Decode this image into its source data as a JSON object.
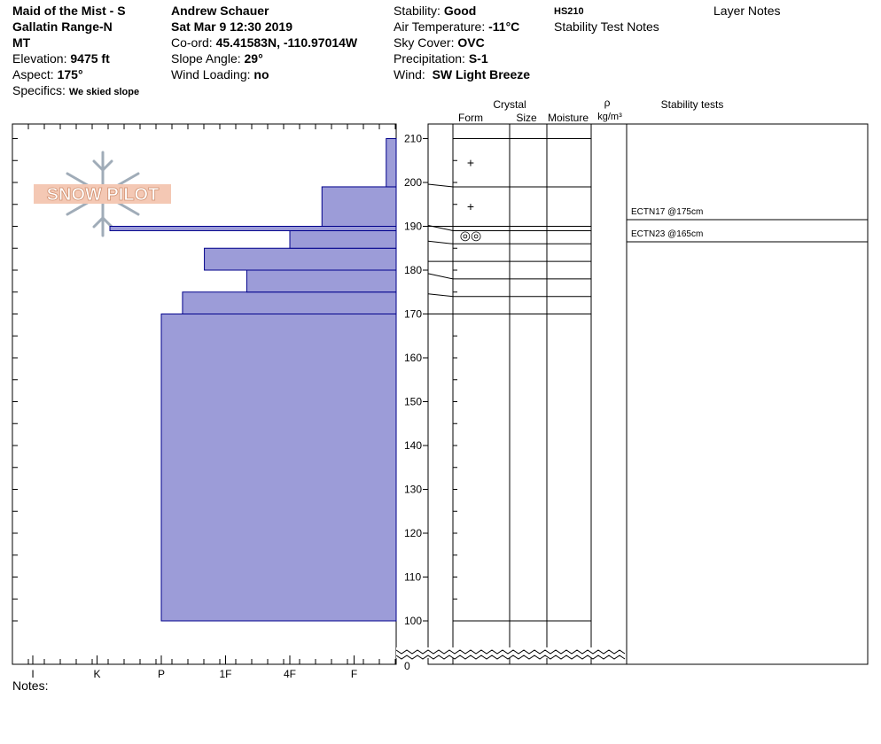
{
  "header": {
    "location_line1": "Maid of the Mist - S",
    "location_line2": "Gallatin Range-N",
    "location_line3": "MT",
    "elevation_label": "Elevation:",
    "elevation_value": "9475 ft",
    "aspect_label": "Aspect:",
    "aspect_value": "175°",
    "specifics_label": "Specifics:",
    "specifics_value": "We skied slope",
    "observer": "Andrew Schauer",
    "datetime": "Sat Mar 9 12:30 2019",
    "coord_label": "Co-ord:",
    "coord_value": "45.41583N, -110.97014W",
    "slope_label": "Slope Angle:",
    "slope_value": "29°",
    "wind_loading_label": "Wind Loading:",
    "wind_loading_value": "no",
    "stability_label": "Stability:",
    "stability_value": "Good",
    "air_temp_label": "Air Temperature:",
    "air_temp_value": "-11°C",
    "sky_label": "Sky Cover:",
    "sky_value": "OVC",
    "precip_label": "Precipitation:",
    "precip_value": "S-1",
    "wind_label": "Wind:",
    "wind_value": "SW Light Breeze",
    "hs": "HS210",
    "stability_test_notes": "Stability Test Notes",
    "layer_notes": "Layer Notes"
  },
  "logo_text": "SNOW PILOT",
  "columns": {
    "crystal": "Crystal",
    "form": "Form",
    "size": "Size",
    "moisture": "Moisture",
    "rho": "ρ",
    "density_unit": "kg/m³",
    "stability_tests": "Stability tests"
  },
  "notes_label": "Notes:",
  "colors": {
    "bar_fill": "#9c9cd8",
    "bar_stroke": "#00008b"
  },
  "chart_data": {
    "type": "bar",
    "orientation": "horizontal",
    "x_axis_categories": [
      "I",
      "K",
      "P",
      "1F",
      "4F",
      "F"
    ],
    "y_ticks": [
      100,
      110,
      120,
      130,
      140,
      150,
      160,
      170,
      180,
      190,
      200,
      210
    ],
    "y_break_label": "0",
    "ylim": [
      97,
      213
    ],
    "hardness_profile": [
      {
        "top": 170,
        "bottom": 100,
        "hardness": 2.0
      },
      {
        "top": 175,
        "bottom": 170,
        "hardness": 2.33
      },
      {
        "top": 180,
        "bottom": 175,
        "hardness": 3.33
      },
      {
        "top": 185,
        "bottom": 180,
        "hardness": 2.67
      },
      {
        "top": 189,
        "bottom": 185,
        "hardness": 4.0
      },
      {
        "top": 190,
        "bottom": 189,
        "hardness": 1.2
      },
      {
        "top": 199,
        "bottom": 190,
        "hardness": 4.5
      },
      {
        "top": 210,
        "bottom": 199,
        "hardness": 5.5
      }
    ],
    "layer_boundaries": [
      210,
      199,
      190,
      189,
      186,
      182,
      178,
      174,
      170,
      100
    ],
    "grain_forms": [
      {
        "depth": 204.5,
        "symbol": "+"
      },
      {
        "depth": 194.5,
        "symbol": "+"
      },
      {
        "depth": 188,
        "symbol": "◎◎"
      }
    ],
    "stability_tests": [
      {
        "label": "ECTN17 @175cm",
        "depth": 190
      },
      {
        "label": "ECTN23 @165cm",
        "depth": 188
      }
    ]
  }
}
